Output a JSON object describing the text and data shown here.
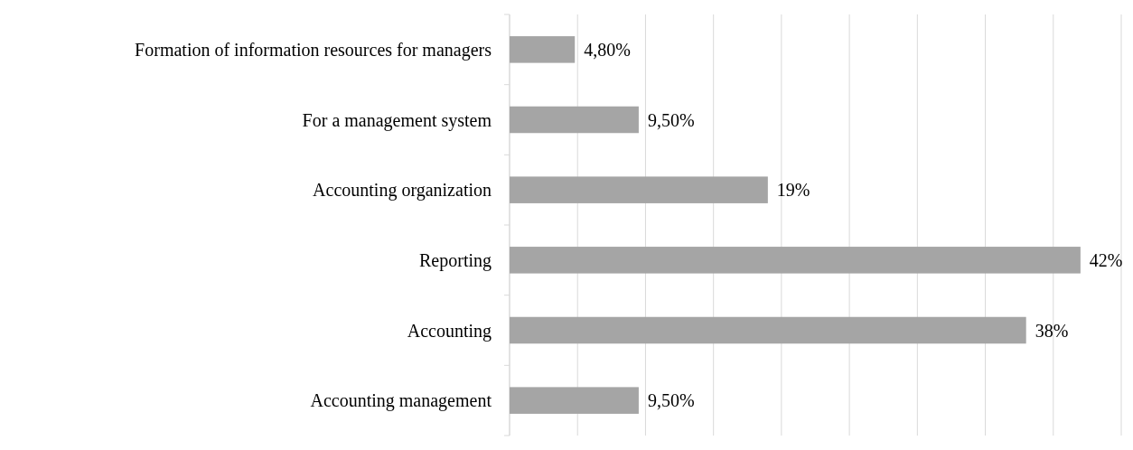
{
  "chart_data": {
    "type": "bar",
    "orientation": "horizontal",
    "categories": [
      "Formation of information resources for managers",
      "For a management system",
      "Accounting organization",
      "Reporting",
      "Accounting",
      "Accounting management"
    ],
    "values": [
      4.8,
      9.5,
      19,
      42,
      38,
      9.5
    ],
    "value_labels": [
      "4,80%",
      "9,50%",
      "19%",
      "42%",
      "38%",
      "9,50%"
    ],
    "color": "#a5a5a5",
    "xlim": [
      0,
      45
    ],
    "xticks": [
      {
        "value": 0,
        "label": null
      },
      {
        "value": 5,
        "label": null
      },
      {
        "value": 10,
        "label": null
      },
      {
        "value": 15,
        "label": null
      },
      {
        "value": 20,
        "label": null
      },
      {
        "value": 25,
        "label": null
      },
      {
        "value": 30,
        "label": null
      },
      {
        "value": 35,
        "label": null
      },
      {
        "value": 40,
        "label": null
      },
      {
        "value": 45,
        "label": null
      }
    ],
    "tick_labels": "y",
    "grid": "x"
  }
}
